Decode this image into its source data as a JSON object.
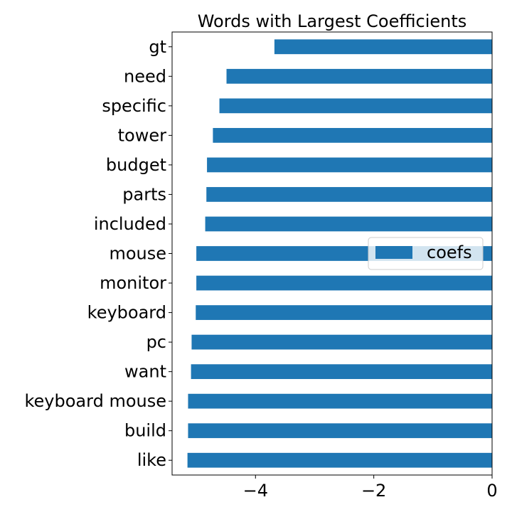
{
  "chart_data": {
    "type": "bar",
    "orientation": "horizontal",
    "title": "Words with Largest Coefficients",
    "xlabel": "",
    "ylabel": "",
    "categories": [
      "gt",
      "need",
      "specific",
      "tower",
      "budget",
      "parts",
      "included",
      "mouse",
      "monitor",
      "keyboard",
      "pc",
      "want",
      "keyboard mouse",
      "build",
      "like"
    ],
    "series": [
      {
        "name": "coefs",
        "values": [
          -3.68,
          -4.49,
          -4.61,
          -4.72,
          -4.82,
          -4.83,
          -4.85,
          -5.0,
          -5.0,
          -5.01,
          -5.08,
          -5.09,
          -5.14,
          -5.14,
          -5.15
        ]
      }
    ],
    "xlim": [
      -5.41,
      0
    ],
    "xticks": [
      -4,
      -2,
      0
    ],
    "xtick_labels": [
      "−4",
      "−2",
      "0"
    ],
    "color": "#1f77b4",
    "grid": false,
    "legend_position": "center-right"
  }
}
